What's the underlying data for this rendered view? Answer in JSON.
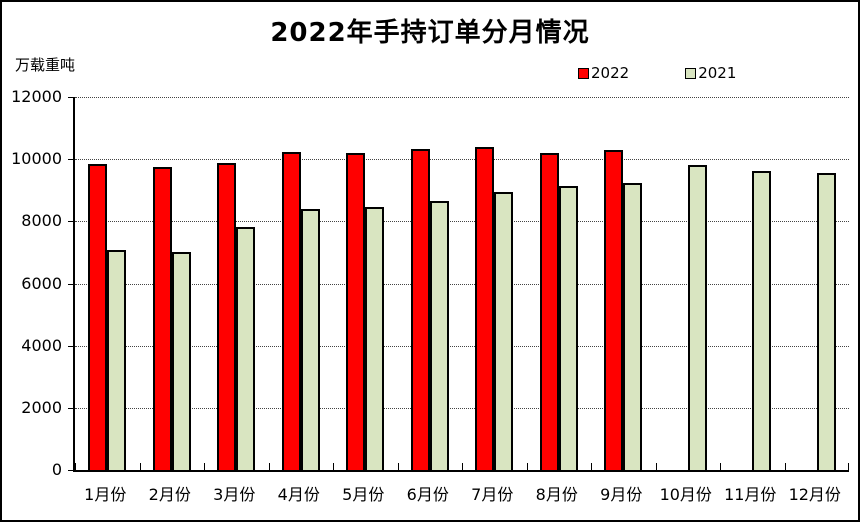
{
  "window": {
    "background": "#FFFFFF",
    "border_color": "#000000"
  },
  "chart_data": {
    "type": "bar",
    "title": "2022年手持订单分月情况",
    "unit_label": "万载重吨",
    "categories": [
      "1月份",
      "2月份",
      "3月份",
      "4月份",
      "5月份",
      "6月份",
      "7月份",
      "8月份",
      "9月份",
      "10月份",
      "11月份",
      "12月份"
    ],
    "series": [
      {
        "name": "2022",
        "color": "#FF0000",
        "values": [
          9840,
          9760,
          9890,
          10240,
          10200,
          10330,
          10400,
          10200,
          10300,
          null,
          null,
          null
        ]
      },
      {
        "name": "2021",
        "color": "#D9E5C1",
        "values": [
          7090,
          7000,
          7830,
          8410,
          8470,
          8660,
          8950,
          9150,
          9240,
          9820,
          9630,
          9560
        ]
      }
    ],
    "ylim": [
      0,
      12000
    ],
    "ytick_interval": 2000,
    "ytick_labels": [
      "0",
      "2000",
      "4000",
      "6000",
      "8000",
      "10000",
      "12000"
    ],
    "xlabel": "",
    "ylabel": "",
    "grid": "horizontal-dotted",
    "legend_position": "top-right",
    "bar_border_color": "#000000"
  }
}
